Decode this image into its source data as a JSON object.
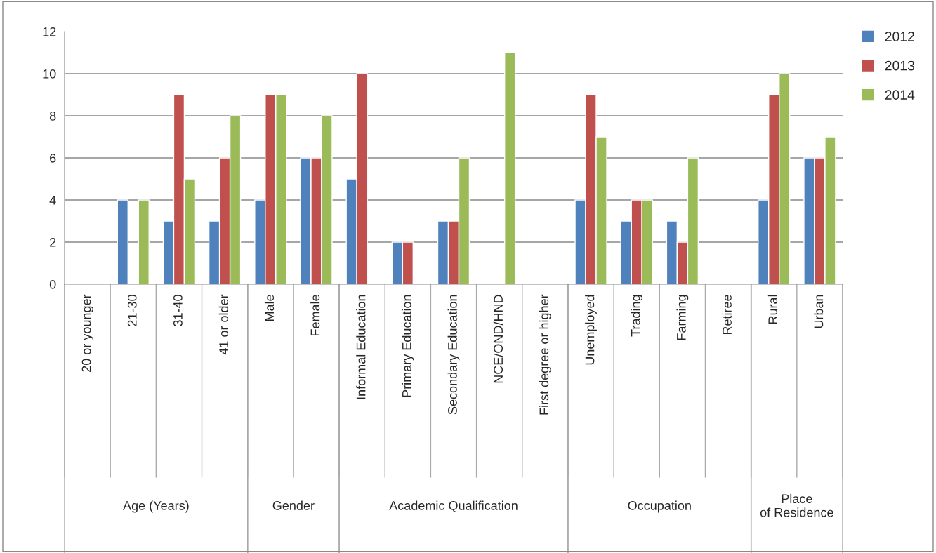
{
  "chart_data": {
    "type": "bar",
    "categories": [
      "20 or younger",
      "21-30",
      "31-40",
      "41 or older",
      "Male",
      "Female",
      "Informal Education",
      "Primary Education",
      "Secondary Education",
      "NCE/OND/HND",
      "First degree or higher",
      "Unemployed",
      "Trading",
      "Farming",
      "Retiree",
      "Rural",
      "Urban"
    ],
    "series": [
      {
        "name": "2012",
        "color": "#4f81bd",
        "values": [
          null,
          4,
          3,
          3,
          4,
          6,
          5,
          2,
          3,
          null,
          null,
          4,
          3,
          3,
          null,
          4,
          6
        ]
      },
      {
        "name": "2013",
        "color": "#c0504d",
        "values": [
          null,
          null,
          9,
          6,
          9,
          6,
          10,
          2,
          3,
          null,
          null,
          9,
          4,
          2,
          null,
          9,
          6
        ]
      },
      {
        "name": "2014",
        "color": "#9bbb59",
        "values": [
          null,
          4,
          5,
          8,
          9,
          8,
          null,
          null,
          6,
          11,
          null,
          7,
          4,
          6,
          null,
          10,
          7
        ]
      }
    ],
    "annotations": [
      "Age (Years)",
      "Gender",
      "Academic Qualification",
      "Occupation",
      "Place of Residence"
    ],
    "ylim": [
      0,
      12
    ],
    "yticks": [
      0,
      2,
      4,
      6,
      8,
      10,
      12
    ],
    "grid": "y",
    "legend": "top right"
  }
}
